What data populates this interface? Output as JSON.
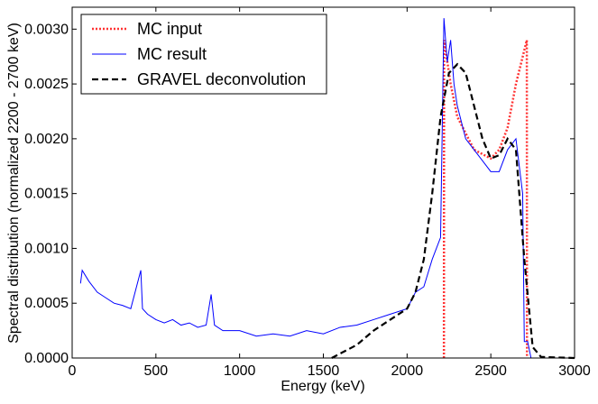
{
  "chart_data": {
    "type": "line",
    "xlabel": "Energy (keV)",
    "ylabel": "Spectral distribution (normalized 2200 - 2700 keV)",
    "xlim": [
      0,
      3000
    ],
    "xticks": [
      0,
      500,
      1000,
      1500,
      2000,
      2500,
      3000
    ],
    "ylim": [
      0,
      0.0032
    ],
    "yticks": [
      {
        "value": 0,
        "label": "0.0000"
      },
      {
        "value": 0.0005,
        "label": "0.0005"
      },
      {
        "value": 0.001,
        "label": "0.0010"
      },
      {
        "value": 0.0015,
        "label": "0.0015"
      },
      {
        "value": 0.002,
        "label": "0.0020"
      },
      {
        "value": 0.0025,
        "label": "0.0025"
      },
      {
        "value": 0.003,
        "label": "0.0030"
      }
    ],
    "legend": "upper left",
    "series": [
      {
        "name": "MC input",
        "color": "#ff3333",
        "dash": "dotted",
        "x": [
          2220,
          2221,
          2260,
          2300,
          2400,
          2500,
          2550,
          2600,
          2650,
          2715,
          2716
        ],
        "values": [
          0,
          0.0029,
          0.0025,
          0.0022,
          0.0019,
          0.00182,
          0.0019,
          0.0021,
          0.0025,
          0.0029,
          0
        ]
      },
      {
        "name": "MC result",
        "color": "#0000ff",
        "dash": "solid",
        "x": [
          50,
          60,
          100,
          150,
          200,
          250,
          300,
          350,
          410,
          420,
          450,
          500,
          550,
          600,
          650,
          700,
          750,
          800,
          830,
          850,
          900,
          1000,
          1100,
          1200,
          1300,
          1400,
          1500,
          1600,
          1700,
          1800,
          1900,
          2000,
          2050,
          2100,
          2150,
          2200,
          2220,
          2240,
          2260,
          2280,
          2300,
          2350,
          2400,
          2450,
          2500,
          2550,
          2600,
          2650,
          2690,
          2700,
          2720,
          2740,
          3000
        ],
        "values": [
          0.00068,
          0.0008,
          0.0007,
          0.0006,
          0.00055,
          0.0005,
          0.00048,
          0.00045,
          0.0008,
          0.00045,
          0.0004,
          0.00035,
          0.00032,
          0.00035,
          0.0003,
          0.00032,
          0.00028,
          0.0003,
          0.00058,
          0.0003,
          0.00025,
          0.00025,
          0.0002,
          0.00022,
          0.0002,
          0.00025,
          0.00022,
          0.00028,
          0.0003,
          0.00035,
          0.0004,
          0.00045,
          0.0006,
          0.00065,
          0.0009,
          0.0011,
          0.0031,
          0.0027,
          0.0029,
          0.0025,
          0.0023,
          0.002,
          0.0019,
          0.0018,
          0.0017,
          0.0017,
          0.0019,
          0.002,
          0.0015,
          0.00015,
          0.00015,
          0,
          0
        ]
      },
      {
        "name": "GRAVEL deconvolution",
        "color": "#000000",
        "dash": "dashed",
        "x": [
          1550,
          1700,
          1800,
          1900,
          2000,
          2050,
          2100,
          2150,
          2200,
          2250,
          2300,
          2350,
          2400,
          2450,
          2500,
          2550,
          2600,
          2650,
          2700,
          2750,
          2800,
          3000
        ],
        "values": [
          0,
          0.00012,
          0.00025,
          0.00035,
          0.00045,
          0.0006,
          0.0009,
          0.0015,
          0.0022,
          0.0026,
          0.00268,
          0.0026,
          0.0023,
          0.002,
          0.00182,
          0.00185,
          0.002,
          0.0019,
          0.0009,
          0.0001,
          1e-05,
          0
        ]
      }
    ]
  }
}
